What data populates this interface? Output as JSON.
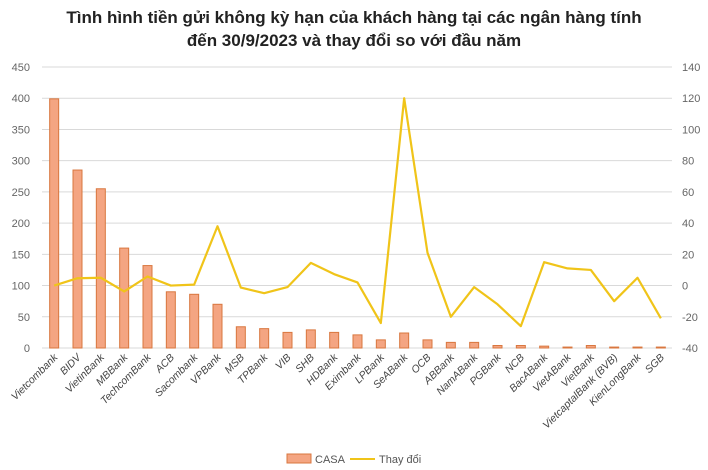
{
  "chart_data": {
    "type": "bar+line",
    "title_line1": "Tình hình tiền gửi không kỳ hạn của khách hàng tại các ngân hàng tính",
    "title_line2": "đến 30/9/2023 và thay đổi so với đầu năm",
    "categories": [
      "Vietcombank",
      "BIDV",
      "VietinBank",
      "MBBank",
      "TechcomBank",
      "ACB",
      "Sacombank",
      "VPBank",
      "MSB",
      "TPBank",
      "VIB",
      "SHB",
      "HDBank",
      "Eximbank",
      "LPBank",
      "SeABank",
      "OCB",
      "ABBank",
      "NamABank",
      "PGBank",
      "NCB",
      "BacABank",
      "VietABank",
      "VietBank",
      "VietcaptalBank (BVB)",
      "KienLongBank",
      "SGB"
    ],
    "series": [
      {
        "name": "CASA",
        "type": "bar",
        "axis": "left",
        "color": "#f4a582",
        "values": [
          399,
          285,
          255,
          160,
          132,
          90,
          86,
          70,
          34,
          31,
          25,
          29,
          25,
          21,
          13,
          24,
          13,
          9,
          9,
          4,
          4,
          3,
          1.5,
          4,
          1.5,
          1.5,
          1.5
        ]
      },
      {
        "name": "Thay đổi",
        "type": "line",
        "axis": "right",
        "color": "#f0c419",
        "values": [
          0,
          4.7,
          5,
          -3.8,
          5.8,
          0,
          0.6,
          38,
          -1.3,
          -4.9,
          -1,
          14.5,
          7.3,
          2,
          -24,
          120,
          21,
          -20,
          -1,
          -12,
          -26,
          15,
          11,
          10,
          -10,
          5,
          -21
        ]
      }
    ],
    "left_axis": {
      "min": 0,
      "max": 450,
      "step": 50,
      "ticks": [
        "0",
        "50",
        "100",
        "150",
        "200",
        "250",
        "300",
        "350",
        "400",
        "450"
      ]
    },
    "right_axis": {
      "min": -40,
      "max": 140,
      "step": 20,
      "ticks": [
        "-40",
        "-20",
        "0",
        "20",
        "40",
        "60",
        "80",
        "100",
        "120",
        "140"
      ]
    },
    "legend": {
      "position": "bottom",
      "items": [
        "CASA",
        "Thay đổi"
      ]
    },
    "grid": true
  }
}
